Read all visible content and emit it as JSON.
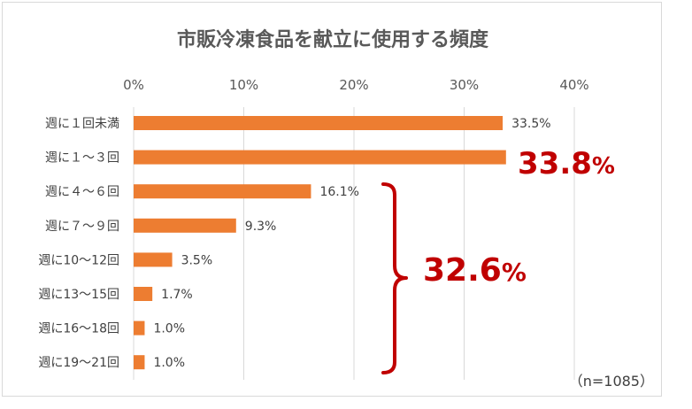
{
  "chart_data": {
    "type": "bar",
    "orientation": "horizontal",
    "title": "市販冷凍食品を献立に使用する頻度",
    "categories": [
      "週に１回未満",
      "週に１～３回",
      "週に４～６回",
      "週に７～９回",
      "週に10～12回",
      "週に13～15回",
      "週に16～18回",
      "週に19～21回"
    ],
    "values": [
      33.5,
      33.8,
      16.1,
      9.3,
      3.5,
      1.7,
      1.0,
      1.0
    ],
    "value_labels": [
      "33.5%",
      "",
      "16.1%",
      "9.3%",
      "3.5%",
      "1.7%",
      "1.0%",
      "1.0%"
    ],
    "x_ticks": [
      "0%",
      "10%",
      "20%",
      "30%",
      "40%"
    ],
    "xlim": [
      0,
      40
    ],
    "grid": true,
    "bar_color": "#ed7d31",
    "highlight": {
      "value_num": "33.8",
      "value_unit": "%",
      "color": "#c00000"
    },
    "bracket_total": {
      "value_num": "32.6",
      "value_unit": "%",
      "color": "#c00000"
    },
    "note": "（n=1085）"
  }
}
